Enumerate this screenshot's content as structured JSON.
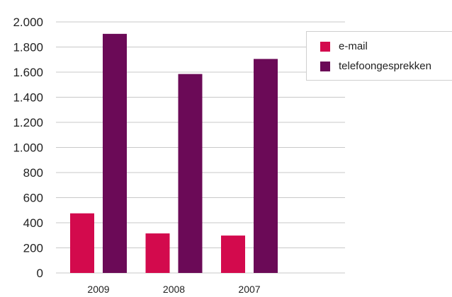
{
  "chart_data": {
    "type": "bar",
    "categories": [
      "2009",
      "2008",
      "2007"
    ],
    "series": [
      {
        "name": "e-mail",
        "color": "#d30a4d",
        "values": [
          475,
          315,
          298
        ]
      },
      {
        "name": "telefoongesprekken",
        "color": "#6b0a57",
        "values": [
          1905,
          1585,
          1705
        ]
      }
    ],
    "ylim": [
      0,
      2000
    ],
    "yticks": [
      0,
      200,
      400,
      600,
      800,
      1000,
      1200,
      1400,
      1600,
      1800,
      2000
    ],
    "ytick_labels": [
      "0",
      "200",
      "400",
      "600",
      "800",
      "1.000",
      "1.200",
      "1.400",
      "1.600",
      "1.800",
      "2.000"
    ],
    "grid": true,
    "legend_position": "top-right",
    "title": "",
    "xlabel": "",
    "ylabel": ""
  }
}
